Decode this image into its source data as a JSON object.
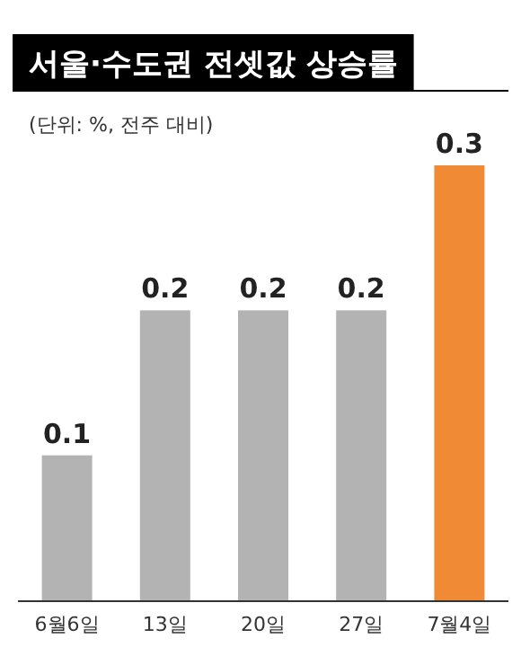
{
  "chart_data": {
    "type": "bar",
    "title": "서울·수도권 전셋값 상승률",
    "subtitle": "(단위: %, 전주 대비)",
    "categories": [
      "6월6일",
      "13일",
      "20일",
      "27일",
      "7월4일"
    ],
    "values": [
      0.1,
      0.2,
      0.2,
      0.2,
      0.3
    ],
    "colors": [
      "#b3b3b3",
      "#b3b3b3",
      "#b3b3b3",
      "#b3b3b3",
      "#f08a35"
    ],
    "data_labels": true
  }
}
